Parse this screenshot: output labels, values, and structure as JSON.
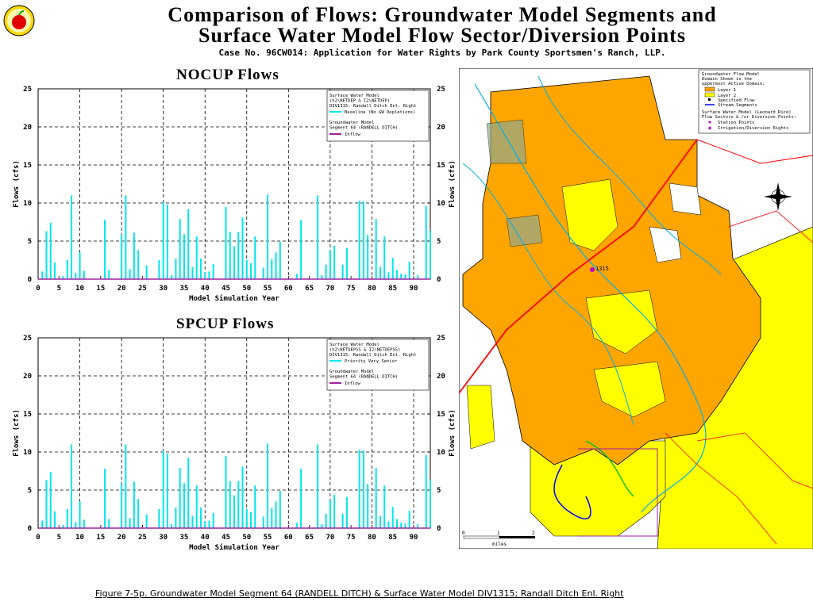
{
  "header": {
    "title_line1": "Comparison of Flows: Groundwater Model Segments and",
    "title_line2": "Surface Water Model Flow Sector/Diversion Points",
    "case_line": "Case No. 96CW014: Application for Water Rights by Park County Sportsmen's Ranch, LLP."
  },
  "charts": [
    {
      "title": "NOCUP Flows",
      "legend": {
        "sw_title": "Surface Water Model",
        "sw_path": "(h2\\NETDEP & I2\\NETDEP)",
        "sw_div": "DIV1315: Randall Ditch Enl. Right",
        "sw_series": "Baseline (No GW Depletions)",
        "gw_title": "Groundwater Model",
        "gw_seg": "Segment 64 (RANDELL DITCH)",
        "gw_series": "Inflow"
      }
    },
    {
      "title": "SPCUP Flows",
      "legend": {
        "sw_title": "Surface Water Model",
        "sw_path": "(h2\\NETDEPSS & I2\\NETDEPSS)",
        "sw_div": "DIV1315: Randall Ditch Enl. Right",
        "sw_series": "Priority Very Senior",
        "gw_title": "Groundwater Model",
        "gw_seg": "Segment 64 (RANDELL DITCH)",
        "gw_series": "Inflow"
      }
    }
  ],
  "axis": {
    "xlabel": "Model Simulation Year",
    "ylabel": "Flows (cfs)",
    "xticks": [
      "0",
      "5",
      "10",
      "15",
      "20",
      "25",
      "30",
      "35",
      "40",
      "45",
      "50",
      "55",
      "60",
      "65",
      "70",
      "75",
      "80",
      "85",
      "90"
    ],
    "yticks": [
      "0",
      "5",
      "10",
      "15",
      "20",
      "25"
    ]
  },
  "chart_data": [
    {
      "type": "bar",
      "title": "NOCUP Flows",
      "xlabel": "Model Simulation Year",
      "ylabel": "Flows (cfs)",
      "xlim": [
        0,
        94
      ],
      "ylim": [
        0,
        25
      ],
      "grid": true,
      "legend_position": "top-right",
      "x": [
        1,
        2,
        3,
        4,
        6,
        7,
        8,
        9,
        10,
        11,
        16,
        17,
        20,
        21,
        22,
        23,
        24,
        26,
        29,
        30,
        31,
        32,
        33,
        34,
        35,
        36,
        37,
        38,
        39,
        40,
        41,
        42,
        45,
        46,
        47,
        48,
        49,
        50,
        51,
        52,
        54,
        55,
        56,
        57,
        58,
        62,
        63,
        67,
        68,
        69,
        70,
        71,
        73,
        74,
        77,
        78,
        79,
        81,
        82,
        83,
        84,
        85,
        86,
        87,
        88,
        89,
        91,
        93,
        94
      ],
      "series": [
        {
          "name": "Baseline (No GW Depletions)",
          "color": "#00e5ee",
          "values": [
            1.0,
            6.3,
            7.4,
            2.2,
            0.4,
            2.5,
            11.0,
            0.8,
            3.5,
            1.1,
            7.8,
            1.2,
            5.8,
            11.0,
            1.3,
            6.1,
            3.8,
            1.8,
            2.5,
            10.1,
            9.8,
            0.5,
            2.7,
            7.9,
            5.9,
            9.2,
            1.6,
            5.6,
            2.7,
            0.9,
            1.0,
            2.0,
            9.5,
            6.2,
            4.3,
            6.2,
            8.1,
            2.5,
            2.1,
            5.6,
            1.5,
            11.1,
            2.6,
            3.5,
            4.9,
            0.7,
            7.8,
            11.0,
            0.5,
            1.9,
            3.7,
            4.4,
            1.9,
            4.1,
            10.3,
            10.2,
            5.8,
            7.9,
            1.6,
            5.6,
            0.9,
            2.8,
            1.2,
            0.7,
            0.6,
            2.3,
            0.5,
            9.6,
            6.4
          ]
        },
        {
          "name": "Inflow",
          "color": "#a020a0",
          "values": [
            0,
            0,
            0,
            0,
            0,
            0,
            0,
            0,
            0,
            0,
            0,
            0,
            0,
            0,
            0,
            0,
            0,
            0,
            0,
            0,
            0,
            0,
            0,
            0,
            0,
            0,
            0,
            0,
            0,
            0,
            0,
            0,
            0,
            0,
            0,
            0,
            0,
            0,
            0,
            0,
            0,
            0,
            0,
            0,
            0,
            0,
            0,
            0,
            0,
            0,
            0,
            0,
            0,
            0,
            0,
            0,
            0,
            0,
            0,
            0,
            0,
            0,
            0,
            0,
            0,
            0,
            0,
            0,
            0
          ]
        }
      ]
    },
    {
      "type": "bar",
      "title": "SPCUP Flows",
      "xlabel": "Model Simulation Year",
      "ylabel": "Flows (cfs)",
      "xlim": [
        0,
        94
      ],
      "ylim": [
        0,
        25
      ],
      "grid": true,
      "legend_position": "top-right",
      "x": [
        1,
        2,
        3,
        4,
        6,
        7,
        8,
        9,
        10,
        11,
        16,
        17,
        20,
        21,
        22,
        23,
        24,
        26,
        29,
        30,
        31,
        32,
        33,
        34,
        35,
        36,
        37,
        38,
        39,
        40,
        41,
        42,
        45,
        46,
        47,
        48,
        49,
        50,
        51,
        52,
        54,
        55,
        56,
        57,
        58,
        62,
        63,
        67,
        68,
        69,
        70,
        71,
        73,
        74,
        77,
        78,
        79,
        81,
        82,
        83,
        84,
        85,
        86,
        87,
        88,
        89,
        91,
        93,
        94
      ],
      "series": [
        {
          "name": "Priority Very Senior",
          "color": "#00e5ee",
          "values": [
            1.0,
            6.3,
            7.4,
            2.2,
            0.4,
            2.5,
            11.0,
            0.8,
            3.5,
            1.1,
            7.8,
            1.2,
            5.8,
            11.0,
            1.3,
            6.1,
            3.8,
            1.8,
            2.5,
            10.1,
            9.8,
            0.5,
            2.7,
            7.9,
            5.9,
            9.2,
            1.6,
            5.6,
            2.7,
            0.9,
            1.0,
            2.0,
            9.5,
            6.2,
            4.3,
            6.2,
            8.1,
            2.5,
            2.1,
            5.6,
            1.5,
            11.1,
            2.6,
            3.5,
            4.9,
            0.7,
            7.8,
            11.0,
            0.5,
            1.9,
            3.7,
            4.4,
            1.9,
            4.1,
            10.3,
            10.2,
            5.8,
            7.9,
            1.6,
            5.6,
            0.9,
            2.8,
            1.2,
            0.7,
            0.6,
            2.3,
            0.5,
            9.6,
            6.4
          ]
        },
        {
          "name": "Inflow",
          "color": "#a020a0",
          "values": [
            0,
            0,
            0,
            0,
            0,
            0,
            0,
            0,
            0,
            0,
            0,
            0,
            0,
            0,
            0,
            0,
            0,
            0,
            0,
            0,
            0,
            0,
            0,
            0,
            0,
            0,
            0,
            0,
            0,
            0,
            0,
            0,
            0,
            0,
            0,
            0,
            0,
            0,
            0,
            0,
            0,
            0,
            0,
            0,
            0,
            0,
            0,
            0,
            0,
            0,
            0,
            0,
            0,
            0,
            0,
            0,
            0,
            0,
            0,
            0,
            0,
            0,
            0,
            0,
            0,
            0,
            0,
            0,
            0
          ]
        }
      ]
    }
  ],
  "map": {
    "legend": {
      "gw_title": "Groundwater Flow Model",
      "gw_line2": "Domain Shown is the",
      "gw_line3": "uppermost Active Domain:",
      "layer1": "Layer 1",
      "layer2": "Layer 2",
      "specified": "Specified Flow",
      "stream": "Stream Segments",
      "sw_title": "Surface Water Model (Leonard Rice)",
      "sw_line2": "Flow Sectors & /or Diversion Points:",
      "station": "Station Points",
      "irrigation": "Irrigation/Diversion Rights"
    },
    "point_label": "1315",
    "scale_left": "0",
    "scale_mid": "1",
    "scale_right": "2",
    "scale_unit": "miles",
    "colors": {
      "layer1": "#ffa500",
      "layer2": "#ffff00",
      "stream": "#0000ff",
      "road": "#ff0000",
      "river": "#00b0ee"
    }
  },
  "footer": {
    "caption": "Figure 7-5p. Groundwater Model Segment 64 (RANDELL DITCH) & Surface Water Model DIV1315; Randall Ditch Enl. Right"
  }
}
